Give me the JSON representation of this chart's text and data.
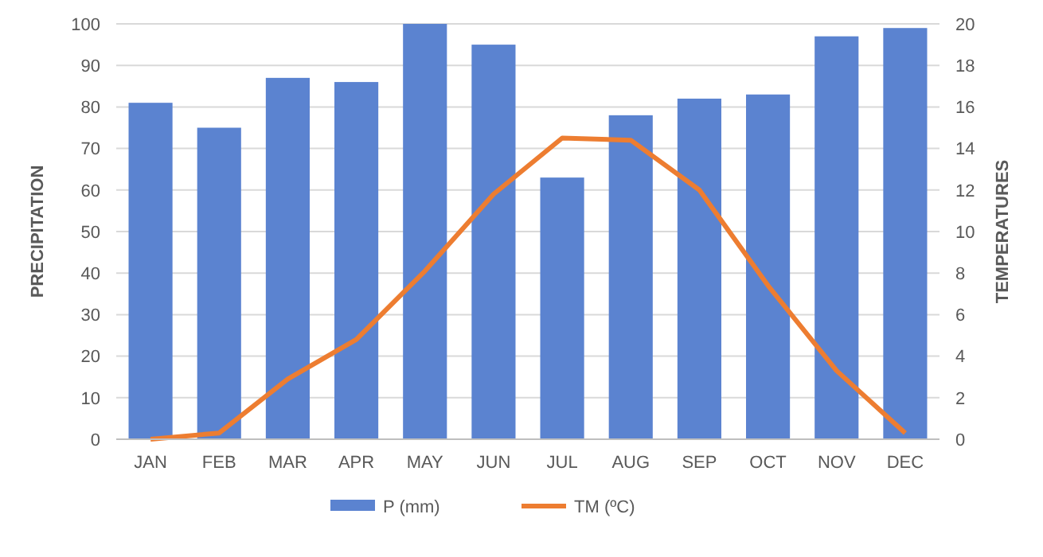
{
  "chart_data": {
    "type": "bar",
    "categories": [
      "JAN",
      "FEB",
      "MAR",
      "APR",
      "MAY",
      "JUN",
      "JUL",
      "AUG",
      "SEP",
      "OCT",
      "NOV",
      "DEC"
    ],
    "series": [
      {
        "name": "P (mm)",
        "color": "#5b83d0",
        "values": [
          81,
          75,
          87,
          86,
          100,
          95,
          63,
          78,
          82,
          83,
          97,
          99
        ]
      },
      {
        "name": "TM (ºC)",
        "type": "line",
        "axis": "y2",
        "color": "#ed7d31",
        "values": [
          0,
          0.3,
          2.9,
          4.8,
          8.1,
          11.8,
          14.5,
          14.4,
          12.0,
          7.4,
          3.3,
          0.3
        ]
      }
    ],
    "ylabel": "PRECIPITATION",
    "y2label": "TEMPERATURES",
    "ylim": [
      0,
      100
    ],
    "yticks": [
      0,
      10,
      20,
      30,
      40,
      50,
      60,
      70,
      80,
      90,
      100
    ],
    "y2lim": [
      0,
      20
    ],
    "y2ticks": [
      0,
      2,
      4,
      6,
      8,
      10,
      12,
      14,
      16,
      18,
      20
    ],
    "grid": "y",
    "legend": "bottom",
    "marker": "none",
    "line_style": "solid"
  }
}
